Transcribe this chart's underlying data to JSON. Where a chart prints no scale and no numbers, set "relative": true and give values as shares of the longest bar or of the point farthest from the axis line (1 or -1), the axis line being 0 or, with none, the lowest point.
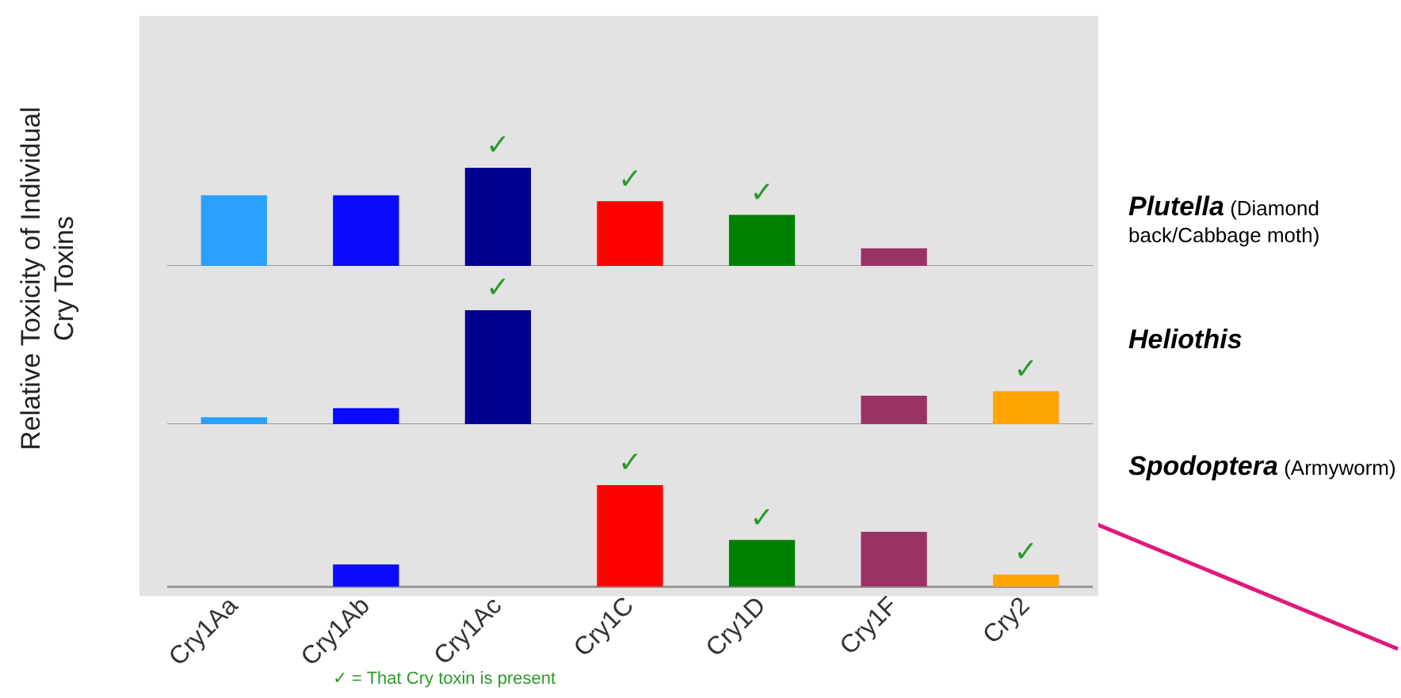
{
  "chart_data": [
    {
      "type": "bar",
      "relative": true,
      "categories": [
        "Cry1Aa",
        "Cry1Ab",
        "Cry1Ac",
        "Cry1C",
        "Cry1D",
        "Cry1F",
        "Cry2"
      ],
      "tick_labels": false,
      "grid": false,
      "legend": false,
      "series": [
        {
          "name": "Plutella (Diamond back/Cabbage moth)",
          "colors": [
            "#2aa0ff",
            "#0a0aff",
            "#000090",
            "#ff0000",
            "#008000",
            "#993366",
            "#ffa500"
          ],
          "values": [
            0.72,
            0.72,
            1,
            0.66,
            0.52,
            0.18,
            0
          ]
        }
      ],
      "annotations": [
        {
          "text": "✓",
          "x": "Cry1Ac",
          "y": 1
        },
        {
          "text": "✓",
          "x": "Cry1C",
          "y": 0.66
        },
        {
          "text": "✓",
          "x": "Cry1D",
          "y": 0.52
        }
      ]
    },
    {
      "type": "bar",
      "relative": true,
      "ylabel": "Relative Toxicity of Individual Cry Toxins",
      "categories": [
        "Cry1Aa",
        "Cry1Ab",
        "Cry1Ac",
        "Cry1C",
        "Cry1D",
        "Cry1F",
        "Cry2"
      ],
      "tick_labels": false,
      "grid": false,
      "legend": false,
      "series": [
        {
          "name": "Heliothis",
          "colors": [
            "#2aa0ff",
            "#0a0aff",
            "#000090",
            "#ff0000",
            "#008000",
            "#993366",
            "#ffa500"
          ],
          "values": [
            0.06,
            0.14,
            1,
            0,
            0,
            0.25,
            0.29
          ]
        }
      ],
      "annotations": [
        {
          "text": "✓",
          "x": "Cry1Ac",
          "y": 1
        },
        {
          "text": "✓",
          "x": "Cry2",
          "y": 0.29
        }
      ]
    },
    {
      "type": "bar",
      "relative": true,
      "categories": [
        "Cry1Aa",
        "Cry1Ab",
        "Cry1Ac",
        "Cry1C",
        "Cry1D",
        "Cry1F",
        "Cry2"
      ],
      "grid": false,
      "legend": false,
      "series": [
        {
          "name": "Spodoptera (Armyworm)",
          "colors": [
            "#2aa0ff",
            "#0a0aff",
            "#000090",
            "#ff0000",
            "#008000",
            "#993366",
            "#ffa500"
          ],
          "values": [
            0,
            0.22,
            0,
            1,
            0.46,
            0.54,
            0.12
          ]
        }
      ],
      "annotations": [
        {
          "text": "✓",
          "x": "Cry1C",
          "y": 1
        },
        {
          "text": "✓",
          "x": "Cry1D",
          "y": 0.46
        },
        {
          "text": "✓",
          "x": "Cry2",
          "y": 0.12
        },
        "✓ = That Cry toxin is present"
      ]
    }
  ]
}
